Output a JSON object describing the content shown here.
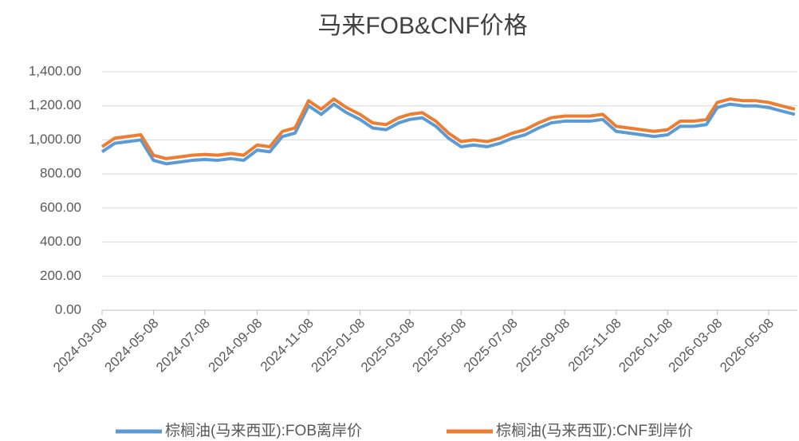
{
  "chart_data": {
    "type": "line",
    "title": "马来FOB&CNF价格",
    "x": [
      "2024-03-08",
      "2024-03-23",
      "2024-04-08",
      "2024-04-23",
      "2024-05-08",
      "2024-05-23",
      "2024-06-08",
      "2024-06-23",
      "2024-07-08",
      "2024-07-23",
      "2024-08-08",
      "2024-08-23",
      "2024-09-08",
      "2024-09-23",
      "2024-10-08",
      "2024-10-23",
      "2024-11-08",
      "2024-11-23",
      "2024-12-08",
      "2024-12-23",
      "2025-01-08",
      "2025-01-23",
      "2025-02-08",
      "2025-02-23",
      "2025-03-08",
      "2025-03-23",
      "2025-04-08",
      "2025-04-23",
      "2025-05-08",
      "2025-05-23",
      "2025-06-08",
      "2025-06-23",
      "2025-07-08",
      "2025-07-23",
      "2025-08-08",
      "2025-08-23",
      "2025-09-08",
      "2025-09-23",
      "2025-10-08",
      "2025-10-23",
      "2025-11-08",
      "2025-11-23",
      "2025-12-08",
      "2025-12-23",
      "2026-01-08",
      "2026-01-23",
      "2026-02-08",
      "2026-02-23",
      "2026-03-08",
      "2026-03-23",
      "2026-04-08",
      "2026-04-23",
      "2026-05-08",
      "2026-05-23",
      "2026-06-08"
    ],
    "series": [
      {
        "name": "棕榈油(马来西亚):FOB离岸价",
        "color": "#5b9bd5",
        "values": [
          930,
          980,
          990,
          1000,
          880,
          860,
          870,
          880,
          885,
          880,
          890,
          880,
          940,
          930,
          1020,
          1040,
          1200,
          1150,
          1210,
          1160,
          1120,
          1070,
          1060,
          1100,
          1120,
          1130,
          1080,
          1010,
          960,
          970,
          960,
          980,
          1010,
          1030,
          1070,
          1100,
          1110,
          1110,
          1110,
          1120,
          1050,
          1040,
          1030,
          1020,
          1030,
          1080,
          1080,
          1090,
          1190,
          1210,
          1200,
          1200,
          1190,
          1170,
          1150
        ]
      },
      {
        "name": "棕榈油(马来西亚):CNF到岸价",
        "color": "#ed7d31",
        "values": [
          960,
          1010,
          1020,
          1030,
          910,
          890,
          900,
          910,
          915,
          910,
          920,
          910,
          970,
          960,
          1050,
          1070,
          1230,
          1180,
          1240,
          1190,
          1150,
          1100,
          1090,
          1130,
          1150,
          1160,
          1110,
          1040,
          990,
          1000,
          990,
          1010,
          1040,
          1060,
          1100,
          1130,
          1140,
          1140,
          1140,
          1150,
          1080,
          1070,
          1060,
          1050,
          1060,
          1110,
          1110,
          1120,
          1220,
          1240,
          1230,
          1230,
          1220,
          1200,
          1180
        ]
      }
    ],
    "xlim": [
      "2024-03-08",
      "2026-06-11"
    ],
    "xticks": [
      "2024-03-08",
      "2024-05-08",
      "2024-07-08",
      "2024-09-08",
      "2024-11-08",
      "2025-01-08",
      "2025-03-08",
      "2025-05-08",
      "2025-07-08",
      "2025-09-08",
      "2025-11-08",
      "2026-01-08",
      "2026-03-08",
      "2026-05-08"
    ],
    "ylim": [
      0,
      1400
    ],
    "yticks": [
      {
        "value": 0,
        "label": "0.00"
      },
      {
        "value": 200,
        "label": "200.00"
      },
      {
        "value": 400,
        "label": "400.00"
      },
      {
        "value": 600,
        "label": "600.00"
      },
      {
        "value": 800,
        "label": "800.00"
      },
      {
        "value": 1000,
        "label": "1,000.00"
      },
      {
        "value": 1200,
        "label": "1,200.00"
      },
      {
        "value": 1400,
        "label": "1,400.00"
      }
    ],
    "grid": true,
    "legend": "bottom"
  }
}
